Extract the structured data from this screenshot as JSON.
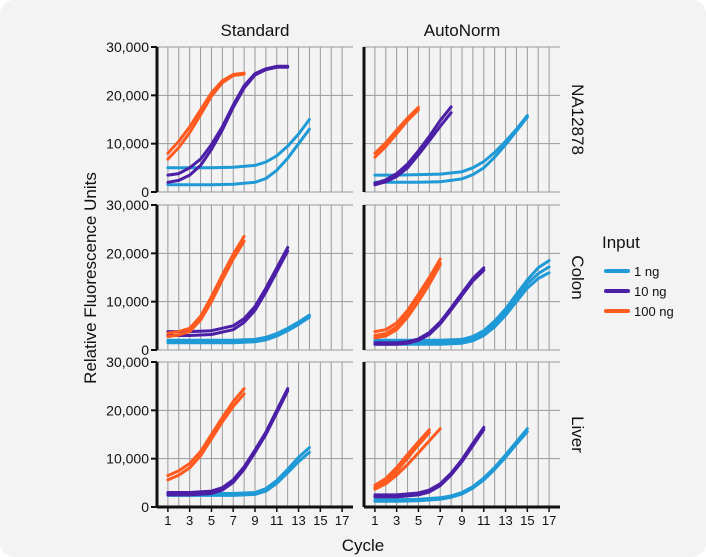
{
  "chart_data": {
    "type": "line",
    "facet_grid": true,
    "columns": [
      "Standard",
      "AutoNorm"
    ],
    "rows": [
      "NA12878",
      "Colon",
      "Liver"
    ],
    "xlabel": "Cycle",
    "ylabel": "Relative Fluorescence Units",
    "xlim": [
      0,
      18
    ],
    "ylim": [
      0,
      30000
    ],
    "x_ticks": [
      "1",
      "3",
      "5",
      "7",
      "9",
      "11",
      "13",
      "15",
      "17"
    ],
    "y_ticks": [
      "0",
      "10,000",
      "20,000",
      "30,000"
    ],
    "grid": true,
    "legend": {
      "title": "Input",
      "position": "right",
      "entries": [
        {
          "label": "1 ng",
          "color": "#1f9ad6"
        },
        {
          "label": "10 ng",
          "color": "#4b1fa6"
        },
        {
          "label": "100 ng",
          "color": "#ff5a1f"
        }
      ]
    },
    "panels": [
      {
        "row": "NA12878",
        "column": "Standard",
        "series": [
          {
            "input": "1 ng",
            "x": [
              1,
              3,
              5,
              7,
              9,
              10,
              11,
              12,
              13,
              14
            ],
            "y": [
              5000,
              5000,
              5000,
              5100,
              5500,
              6200,
              7500,
              9500,
              12000,
              15000
            ]
          },
          {
            "input": "1 ng",
            "x": [
              1,
              3,
              5,
              7,
              9,
              10,
              11,
              12,
              13,
              14
            ],
            "y": [
              1500,
              1500,
              1500,
              1600,
              2000,
              2800,
              4500,
              7000,
              10000,
              13000
            ]
          },
          {
            "input": "10 ng",
            "x": [
              1,
              2,
              3,
              4,
              5,
              6,
              7,
              8,
              9,
              10,
              11,
              12
            ],
            "y": [
              3500,
              3800,
              5000,
              6800,
              9800,
              13500,
              18000,
              22000,
              24500,
              25500,
              26000,
              26000
            ]
          },
          {
            "input": "10 ng",
            "x": [
              1,
              2,
              3,
              4,
              5,
              6,
              7,
              8,
              9,
              10,
              11,
              12
            ],
            "y": [
              2000,
              2400,
              3500,
              5500,
              8800,
              12800,
              17500,
              21500,
              24200,
              25300,
              25800,
              25800
            ]
          },
          {
            "input": "100 ng",
            "x": [
              1,
              2,
              3,
              4,
              5,
              6,
              7,
              8
            ],
            "y": [
              8000,
              10500,
              13500,
              17000,
              20500,
              23000,
              24300,
              24600
            ]
          },
          {
            "input": "100 ng",
            "x": [
              1,
              2,
              3,
              4,
              5,
              6,
              7,
              8
            ],
            "y": [
              6800,
              9200,
              12300,
              16000,
              19800,
              22600,
              24100,
              24400
            ]
          }
        ]
      },
      {
        "row": "NA12878",
        "column": "AutoNorm",
        "series": [
          {
            "input": "1 ng",
            "x": [
              1,
              3,
              5,
              7,
              9,
              10,
              11,
              12,
              13,
              14,
              15
            ],
            "y": [
              3500,
              3500,
              3600,
              3700,
              4200,
              5000,
              6300,
              8200,
              10500,
              13000,
              15800
            ]
          },
          {
            "input": "1 ng",
            "x": [
              1,
              3,
              5,
              7,
              9,
              10,
              11,
              12,
              13,
              14,
              15
            ],
            "y": [
              2000,
              2000,
              2000,
              2100,
              2700,
              3600,
              5000,
              7200,
              9800,
              12600,
              15500
            ]
          },
          {
            "input": "10 ng",
            "x": [
              1,
              2,
              3,
              4,
              5,
              6,
              7,
              8
            ],
            "y": [
              1800,
              2500,
              3800,
              5800,
              8500,
              11500,
              14800,
              17600
            ]
          },
          {
            "input": "10 ng",
            "x": [
              1,
              2,
              3,
              4,
              5,
              6,
              7,
              8
            ],
            "y": [
              1500,
              2100,
              3200,
              5000,
              7700,
              10600,
              13600,
              16400
            ]
          },
          {
            "input": "100 ng",
            "x": [
              1,
              2,
              3,
              4,
              5
            ],
            "y": [
              8000,
              10200,
              12800,
              15300,
              17500
            ]
          },
          {
            "input": "100 ng",
            "x": [
              1,
              2,
              3,
              4,
              5
            ],
            "y": [
              7200,
              9400,
              12100,
              14800,
              17000
            ]
          }
        ]
      },
      {
        "row": "Colon",
        "column": "Standard",
        "series": [
          {
            "input": "1 ng",
            "x": [
              1,
              3,
              5,
              7,
              9,
              10,
              11,
              12,
              13,
              14
            ],
            "y": [
              2000,
              2000,
              2000,
              2000,
              2200,
              2600,
              3400,
              4500,
              5800,
              7200
            ]
          },
          {
            "input": "1 ng",
            "x": [
              1,
              3,
              5,
              7,
              9,
              10,
              11,
              12,
              13,
              14
            ],
            "y": [
              1500,
              1500,
              1500,
              1500,
              1700,
              2100,
              2900,
              4000,
              5300,
              6800
            ]
          },
          {
            "input": "10 ng",
            "x": [
              1,
              3,
              5,
              7,
              8,
              9,
              10,
              11,
              12
            ],
            "y": [
              3800,
              3800,
              4000,
              5000,
              6500,
              9000,
              12800,
              17000,
              21200
            ]
          },
          {
            "input": "10 ng",
            "x": [
              1,
              3,
              5,
              7,
              8,
              9,
              10,
              11,
              12
            ],
            "y": [
              3000,
              3000,
              3200,
              4200,
              5700,
              8200,
              12000,
              16200,
              20500
            ]
          },
          {
            "input": "100 ng",
            "x": [
              1,
              2,
              3,
              4,
              5,
              6,
              7,
              8
            ],
            "y": [
              3500,
              3800,
              4500,
              7000,
              11000,
              15500,
              19800,
              23500
            ]
          },
          {
            "input": "100 ng",
            "x": [
              1,
              2,
              3,
              4,
              5,
              6,
              7,
              8
            ],
            "y": [
              2800,
              3100,
              3800,
              6200,
              10000,
              14500,
              18800,
              22500
            ]
          }
        ]
      },
      {
        "row": "Colon",
        "column": "AutoNorm",
        "series": [
          {
            "input": "1 ng",
            "x": [
              1,
              3,
              5,
              7,
              9,
              10,
              11,
              12,
              13,
              14,
              15,
              16,
              17
            ],
            "y": [
              2000,
              2000,
              2000,
              2000,
              2200,
              2800,
              4000,
              6000,
              8500,
              11500,
              14500,
              17000,
              18500
            ]
          },
          {
            "input": "1 ng",
            "x": [
              1,
              3,
              5,
              7,
              9,
              10,
              11,
              12,
              13,
              14,
              15,
              16,
              17
            ],
            "y": [
              1500,
              1500,
              1500,
              1500,
              1700,
              2300,
              3500,
              5400,
              7900,
              10800,
              13700,
              15800,
              17200
            ]
          },
          {
            "input": "1 ng",
            "x": [
              1,
              3,
              5,
              7,
              9,
              10,
              11,
              12,
              13,
              14,
              15,
              16,
              17
            ],
            "y": [
              1200,
              1200,
              1200,
              1200,
              1400,
              1900,
              3000,
              4800,
              7200,
              10000,
              12800,
              14800,
              16000
            ]
          },
          {
            "input": "10 ng",
            "x": [
              1,
              3,
              4,
              5,
              6,
              7,
              8,
              9,
              10,
              11
            ],
            "y": [
              1500,
              1500,
              1700,
              2300,
              3600,
              5800,
              8700,
              11800,
              14800,
              17000
            ]
          },
          {
            "input": "10 ng",
            "x": [
              1,
              3,
              4,
              5,
              6,
              7,
              8,
              9,
              10,
              11
            ],
            "y": [
              1200,
              1200,
              1400,
              2000,
              3200,
              5400,
              8300,
              11300,
              14300,
              16500
            ]
          },
          {
            "input": "100 ng",
            "x": [
              1,
              2,
              3,
              4,
              5,
              6,
              7
            ],
            "y": [
              3800,
              4200,
              5600,
              8200,
              11500,
              15000,
              18800
            ]
          },
          {
            "input": "100 ng",
            "x": [
              1,
              2,
              3,
              4,
              5,
              6,
              7
            ],
            "y": [
              3000,
              3400,
              4800,
              7400,
              10700,
              14200,
              18000
            ]
          },
          {
            "input": "100 ng",
            "x": [
              1,
              2,
              3,
              4,
              5,
              6,
              7
            ],
            "y": [
              2500,
              2900,
              4200,
              6800,
              10000,
              13600,
              17600
            ]
          }
        ]
      },
      {
        "row": "Liver",
        "column": "Standard",
        "series": [
          {
            "input": "1 ng",
            "x": [
              1,
              3,
              5,
              7,
              9,
              10,
              11,
              12,
              13,
              14
            ],
            "y": [
              2800,
              2800,
              2800,
              2800,
              3000,
              3800,
              5500,
              7800,
              10300,
              12300
            ]
          },
          {
            "input": "1 ng",
            "x": [
              1,
              3,
              5,
              7,
              9,
              10,
              11,
              12,
              13,
              14
            ],
            "y": [
              2400,
              2400,
              2400,
              2400,
              2600,
              3300,
              4900,
              7100,
              9400,
              11300
            ]
          },
          {
            "input": "10 ng",
            "x": [
              1,
              3,
              5,
              6,
              7,
              8,
              9,
              10,
              11,
              12
            ],
            "y": [
              3000,
              3000,
              3300,
              4000,
              5600,
              8300,
              11800,
              15500,
              20000,
              24500
            ]
          },
          {
            "input": "10 ng",
            "x": [
              1,
              3,
              5,
              6,
              7,
              8,
              9,
              10,
              11,
              12
            ],
            "y": [
              2500,
              2500,
              2800,
              3500,
              5100,
              7800,
              11300,
              15000,
              19500,
              24000
            ]
          },
          {
            "input": "100 ng",
            "x": [
              1,
              2,
              3,
              4,
              5,
              6,
              7,
              8
            ],
            "y": [
              6500,
              7500,
              9000,
              11500,
              15000,
              18500,
              21800,
              24500
            ]
          },
          {
            "input": "100 ng",
            "x": [
              1,
              2,
              3,
              4,
              5,
              6,
              7,
              8
            ],
            "y": [
              5600,
              6600,
              8100,
              10600,
              14100,
              17600,
              20800,
              23400
            ]
          }
        ]
      },
      {
        "row": "Liver",
        "column": "AutoNorm",
        "series": [
          {
            "input": "1 ng",
            "x": [
              1,
              3,
              5,
              7,
              8,
              9,
              10,
              11,
              12,
              13,
              14,
              15
            ],
            "y": [
              1500,
              1500,
              1600,
              1900,
              2300,
              3000,
              4200,
              6000,
              8200,
              10800,
              13500,
              16200
            ]
          },
          {
            "input": "1 ng",
            "x": [
              1,
              3,
              5,
              7,
              8,
              9,
              10,
              11,
              12,
              13,
              14,
              15
            ],
            "y": [
              1200,
              1200,
              1300,
              1600,
              2000,
              2700,
              3900,
              5600,
              7800,
              10300,
              13000,
              15600
            ]
          },
          {
            "input": "10 ng",
            "x": [
              1,
              3,
              5,
              6,
              7,
              8,
              9,
              10,
              11
            ],
            "y": [
              2500,
              2500,
              2900,
              3500,
              4800,
              7000,
              9800,
              13200,
              16500
            ]
          },
          {
            "input": "10 ng",
            "x": [
              1,
              3,
              5,
              6,
              7,
              8,
              9,
              10,
              11
            ],
            "y": [
              2100,
              2100,
              2500,
              3100,
              4400,
              6600,
              9400,
              12700,
              16000
            ]
          },
          {
            "input": "100 ng",
            "x": [
              1,
              2,
              3,
              4,
              5,
              6
            ],
            "y": [
              4500,
              5900,
              8200,
              10900,
              13500,
              16000
            ]
          },
          {
            "input": "100 ng",
            "x": [
              1,
              2,
              3,
              4,
              5,
              6,
              7
            ],
            "y": [
              3700,
              4800,
              6600,
              8800,
              11200,
              13700,
              16200
            ]
          },
          {
            "input": "100 ng",
            "x": [
              1,
              2,
              3,
              4,
              5,
              6
            ],
            "y": [
              4000,
              5300,
              7400,
              10100,
              12800,
              15400
            ]
          }
        ]
      }
    ]
  }
}
